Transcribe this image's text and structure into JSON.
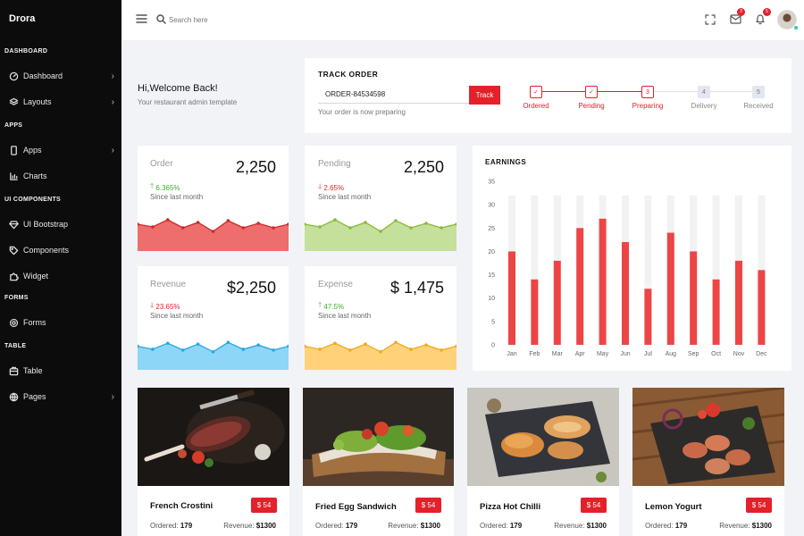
{
  "sidebar": {
    "brand": "Drora",
    "sections": [
      "DASHBOARD",
      "APPS",
      "UI COMPONENTS",
      "FORMS",
      "TABLE"
    ],
    "items": [
      {
        "label": "Dashboard",
        "icon": "dashboard-icon",
        "chevron": true
      },
      {
        "label": "Layouts",
        "icon": "layers-icon",
        "chevron": true
      },
      {
        "label": "Apps",
        "icon": "phone-icon",
        "chevron": true
      },
      {
        "label": "Charts",
        "icon": "chart-icon",
        "chevron": false
      },
      {
        "label": "UI Bootstrap",
        "icon": "diamond-icon",
        "chevron": false
      },
      {
        "label": "Components",
        "icon": "tag-icon",
        "chevron": false
      },
      {
        "label": "Widget",
        "icon": "puzzle-icon",
        "chevron": false
      },
      {
        "label": "Forms",
        "icon": "settings-icon",
        "chevron": false
      },
      {
        "label": "Table",
        "icon": "table-icon",
        "chevron": false
      },
      {
        "label": "Pages",
        "icon": "globe-icon",
        "chevron": true
      }
    ]
  },
  "topbar": {
    "search_placeholder": "Search here",
    "mail_badge": "3",
    "bell_badge": "5"
  },
  "welcome": {
    "title": "Hi,Welcome Back!",
    "subtitle": "Your restaurant admin template"
  },
  "track_order": {
    "title": "TRACK ORDER",
    "order_id": "ORDER-84534598",
    "button": "Track",
    "status": "Your order is now preparing",
    "steps": [
      {
        "label": "Ordered",
        "mark": "✓",
        "done": true
      },
      {
        "label": "Pending",
        "mark": "✓",
        "done": true
      },
      {
        "label": "Preparing",
        "mark": "3",
        "done": true
      },
      {
        "label": "Delivery",
        "mark": "4",
        "done": false
      },
      {
        "label": "Received",
        "mark": "5",
        "done": false
      }
    ]
  },
  "stats": [
    {
      "label": "Order",
      "value": "2,250",
      "change": "6.365%",
      "direction": "up",
      "since": "Since last month",
      "color": "#ee6d6d",
      "line": "#cc2a2a",
      "trend": [
        0.4,
        0.46,
        0.3,
        0.48,
        0.36,
        0.56,
        0.32,
        0.48,
        0.38,
        0.48,
        0.4
      ]
    },
    {
      "label": "Pending",
      "value": "2,250",
      "change": "2.65%",
      "direction": "down",
      "since": "Since last month",
      "color": "#c5e09a",
      "line": "#8ab83a",
      "trend": [
        0.4,
        0.46,
        0.3,
        0.48,
        0.36,
        0.56,
        0.32,
        0.48,
        0.38,
        0.48,
        0.4
      ]
    },
    {
      "label": "Revenue",
      "value": "$2,250",
      "change": "23.65%",
      "direction": "down",
      "since": "Since last month",
      "color": "#8dd6f8",
      "line": "#2aa6e0",
      "trend": [
        0.45,
        0.52,
        0.38,
        0.54,
        0.4,
        0.58,
        0.36,
        0.52,
        0.42,
        0.54,
        0.45
      ]
    },
    {
      "label": "Expense",
      "value": "$ 1,475",
      "change": "47.5%",
      "direction": "up",
      "since": "Since last month",
      "color": "#ffd27a",
      "line": "#f0aa20",
      "trend": [
        0.45,
        0.52,
        0.38,
        0.54,
        0.4,
        0.58,
        0.36,
        0.52,
        0.42,
        0.54,
        0.45
      ]
    }
  ],
  "colors": {
    "accent": "#e4202a",
    "up": "#3fae2a",
    "down": "#e4202a"
  },
  "chart_data": {
    "type": "bar",
    "title": "EARNINGS",
    "categories": [
      "Jan",
      "Feb",
      "Mar",
      "Apr",
      "May",
      "Jun",
      "Jul",
      "Aug",
      "Sep",
      "Oct",
      "Nov",
      "Dec"
    ],
    "values": [
      20,
      14,
      18,
      25,
      27,
      22,
      12,
      24,
      20,
      14,
      18,
      16
    ],
    "background_max": 32,
    "ylim": [
      0,
      35
    ],
    "yticks": [
      0,
      5,
      10,
      15,
      20,
      25,
      30,
      35
    ],
    "bar_color": "#ec4545",
    "track_color": "#f2f2f2"
  },
  "foods": [
    {
      "name": "French Crostini",
      "price": "$ 54",
      "ordered_label": "Ordered:",
      "ordered": "179",
      "revenue_label": "Revenue:",
      "revenue": "$1300"
    },
    {
      "name": "Fried Egg Sandwich",
      "price": "$ 54",
      "ordered_label": "Ordered:",
      "ordered": "179",
      "revenue_label": "Revenue:",
      "revenue": "$1300"
    },
    {
      "name": "Pizza Hot Chilli",
      "price": "$ 54",
      "ordered_label": "Ordered:",
      "ordered": "179",
      "revenue_label": "Revenue:",
      "revenue": "$1300"
    },
    {
      "name": "Lemon Yogurt",
      "price": "$ 54",
      "ordered_label": "Ordered:",
      "ordered": "179",
      "revenue_label": "Revenue:",
      "revenue": "$1300"
    }
  ]
}
